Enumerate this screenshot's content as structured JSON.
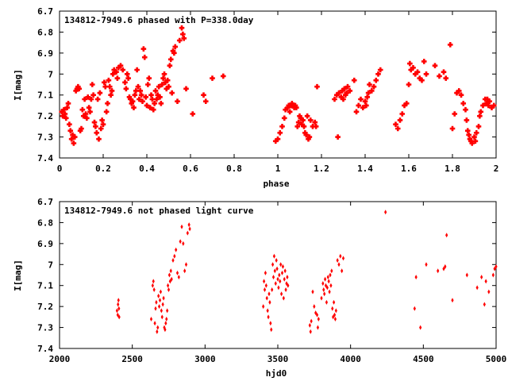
{
  "chart_data": [
    {
      "type": "scatter",
      "title": "134812-7949.6 phased with P=338.0day",
      "xlabel": "phase",
      "ylabel": "I[mag]",
      "xlim": [
        0,
        2
      ],
      "ylim": [
        7.4,
        6.7
      ],
      "y_inverted": true,
      "x_ticks": [
        "0",
        "0.2",
        "0.4",
        "0.6",
        "0.8",
        "1",
        "1.2",
        "1.4",
        "1.6",
        "1.8",
        "2"
      ],
      "y_ticks": [
        "6.7",
        "6.8",
        "6.9",
        "7",
        "7.1",
        "7.2",
        "7.3",
        "7.4"
      ],
      "marker": "cross",
      "color": "#ff0000",
      "points": [
        [
          0.01,
          7.18
        ],
        [
          0.015,
          7.2
        ],
        [
          0.02,
          7.17
        ],
        [
          0.025,
          7.19
        ],
        [
          0.03,
          7.21
        ],
        [
          0.035,
          7.16
        ],
        [
          0.04,
          7.14
        ],
        [
          0.045,
          7.24
        ],
        [
          0.05,
          7.27
        ],
        [
          0.055,
          7.31
        ],
        [
          0.06,
          7.29
        ],
        [
          0.065,
          7.33
        ],
        [
          0.07,
          7.3
        ],
        [
          0.075,
          7.08
        ],
        [
          0.08,
          7.07
        ],
        [
          0.085,
          7.06
        ],
        [
          0.09,
          7.07
        ],
        [
          0.095,
          7.27
        ],
        [
          0.1,
          7.26
        ],
        [
          0.105,
          7.17
        ],
        [
          0.11,
          7.2
        ],
        [
          0.115,
          7.12
        ],
        [
          0.12,
          7.19
        ],
        [
          0.125,
          7.21
        ],
        [
          0.13,
          7.11
        ],
        [
          0.135,
          7.16
        ],
        [
          0.14,
          7.18
        ],
        [
          0.145,
          7.12
        ],
        [
          0.15,
          7.05
        ],
        [
          0.155,
          7.1
        ],
        [
          0.16,
          7.23
        ],
        [
          0.165,
          7.25
        ],
        [
          0.17,
          7.28
        ],
        [
          0.175,
          7.12
        ],
        [
          0.18,
          7.31
        ],
        [
          0.185,
          7.09
        ],
        [
          0.19,
          7.26
        ],
        [
          0.195,
          7.22
        ],
        [
          0.2,
          7.24
        ],
        [
          0.205,
          7.04
        ],
        [
          0.21,
          7.06
        ],
        [
          0.215,
          7.18
        ],
        [
          0.22,
          7.14
        ],
        [
          0.225,
          7.03
        ],
        [
          0.23,
          7.06
        ],
        [
          0.235,
          7.1
        ],
        [
          0.24,
          7.08
        ],
        [
          0.245,
          7.0
        ],
        [
          0.25,
          6.98
        ],
        [
          0.26,
          6.99
        ],
        [
          0.265,
          7.02
        ],
        [
          0.27,
          6.97
        ],
        [
          0.28,
          6.96
        ],
        [
          0.29,
          6.98
        ],
        [
          0.3,
          7.04
        ],
        [
          0.305,
          7.07
        ],
        [
          0.31,
          7.0
        ],
        [
          0.315,
          7.02
        ],
        [
          0.32,
          7.11
        ],
        [
          0.325,
          7.12
        ],
        [
          0.33,
          7.14
        ],
        [
          0.335,
          7.13
        ],
        [
          0.34,
          7.16
        ],
        [
          0.345,
          7.1
        ],
        [
          0.35,
          7.08
        ],
        [
          0.355,
          6.98
        ],
        [
          0.36,
          7.06
        ],
        [
          0.365,
          7.12
        ],
        [
          0.37,
          7.08
        ],
        [
          0.375,
          7.1
        ],
        [
          0.38,
          7.13
        ],
        [
          0.385,
          6.88
        ],
        [
          0.39,
          6.92
        ],
        [
          0.395,
          7.11
        ],
        [
          0.4,
          7.15
        ],
        [
          0.405,
          7.05
        ],
        [
          0.41,
          7.02
        ],
        [
          0.415,
          7.16
        ],
        [
          0.42,
          7.1
        ],
        [
          0.425,
          7.12
        ],
        [
          0.43,
          7.17
        ],
        [
          0.435,
          7.14
        ],
        [
          0.44,
          7.08
        ],
        [
          0.445,
          7.12
        ],
        [
          0.45,
          7.1
        ],
        [
          0.455,
          7.06
        ],
        [
          0.46,
          7.11
        ],
        [
          0.465,
          7.14
        ],
        [
          0.47,
          7.05
        ],
        [
          0.475,
          7.02
        ],
        [
          0.48,
          7.0
        ],
        [
          0.485,
          7.04
        ],
        [
          0.49,
          7.07
        ],
        [
          0.495,
          7.03
        ],
        [
          0.5,
          7.06
        ],
        [
          0.505,
          6.96
        ],
        [
          0.51,
          6.93
        ],
        [
          0.515,
          7.09
        ],
        [
          0.52,
          6.89
        ],
        [
          0.525,
          6.9
        ],
        [
          0.53,
          6.87
        ],
        [
          0.54,
          7.13
        ],
        [
          0.55,
          6.84
        ],
        [
          0.56,
          6.78
        ],
        [
          0.565,
          6.81
        ],
        [
          0.57,
          6.83
        ],
        [
          0.58,
          7.07
        ],
        [
          0.61,
          7.19
        ],
        [
          0.66,
          7.1
        ],
        [
          0.67,
          7.13
        ],
        [
          0.7,
          7.02
        ],
        [
          0.75,
          7.01
        ],
        [
          0.99,
          7.32
        ],
        [
          1.0,
          7.31
        ],
        [
          1.01,
          7.28
        ],
        [
          1.02,
          7.25
        ],
        [
          1.03,
          7.21
        ],
        [
          1.035,
          7.17
        ],
        [
          1.045,
          7.16
        ],
        [
          1.05,
          7.15
        ],
        [
          1.055,
          7.18
        ],
        [
          1.06,
          7.15
        ],
        [
          1.065,
          7.14
        ],
        [
          1.07,
          7.15
        ],
        [
          1.075,
          7.16
        ],
        [
          1.08,
          7.15
        ],
        [
          1.085,
          7.16
        ],
        [
          1.09,
          7.25
        ],
        [
          1.095,
          7.23
        ],
        [
          1.1,
          7.2
        ],
        [
          1.105,
          7.21
        ],
        [
          1.11,
          7.24
        ],
        [
          1.115,
          7.22
        ],
        [
          1.12,
          7.25
        ],
        [
          1.125,
          7.28
        ],
        [
          1.13,
          7.29
        ],
        [
          1.135,
          7.2
        ],
        [
          1.14,
          7.31
        ],
        [
          1.145,
          7.3
        ],
        [
          1.15,
          7.22
        ],
        [
          1.16,
          7.25
        ],
        [
          1.17,
          7.23
        ],
        [
          1.175,
          7.25
        ],
        [
          1.18,
          7.06
        ],
        [
          1.26,
          7.12
        ],
        [
          1.27,
          7.1
        ],
        [
          1.275,
          7.3
        ],
        [
          1.28,
          7.09
        ],
        [
          1.29,
          7.11
        ],
        [
          1.295,
          7.08
        ],
        [
          1.3,
          7.12
        ],
        [
          1.305,
          7.07
        ],
        [
          1.31,
          7.1
        ],
        [
          1.315,
          7.09
        ],
        [
          1.32,
          7.06
        ],
        [
          1.33,
          7.08
        ],
        [
          1.35,
          7.03
        ],
        [
          1.36,
          7.18
        ],
        [
          1.37,
          7.15
        ],
        [
          1.38,
          7.12
        ],
        [
          1.39,
          7.16
        ],
        [
          1.4,
          7.13
        ],
        [
          1.405,
          7.15
        ],
        [
          1.41,
          7.11
        ],
        [
          1.415,
          7.09
        ],
        [
          1.42,
          7.05
        ],
        [
          1.43,
          7.08
        ],
        [
          1.44,
          7.06
        ],
        [
          1.45,
          7.03
        ],
        [
          1.46,
          7.0
        ],
        [
          1.47,
          6.98
        ],
        [
          1.54,
          7.24
        ],
        [
          1.55,
          7.26
        ],
        [
          1.56,
          7.22
        ],
        [
          1.57,
          7.19
        ],
        [
          1.58,
          7.15
        ],
        [
          1.59,
          7.14
        ],
        [
          1.6,
          7.05
        ],
        [
          1.605,
          6.95
        ],
        [
          1.61,
          6.98
        ],
        [
          1.62,
          6.97
        ],
        [
          1.63,
          7.0
        ],
        [
          1.64,
          6.99
        ],
        [
          1.65,
          7.02
        ],
        [
          1.66,
          7.03
        ],
        [
          1.67,
          6.94
        ],
        [
          1.68,
          7.0
        ],
        [
          1.72,
          6.96
        ],
        [
          1.74,
          7.01
        ],
        [
          1.76,
          6.99
        ],
        [
          1.77,
          7.02
        ],
        [
          1.79,
          6.86
        ],
        [
          1.8,
          7.26
        ],
        [
          1.81,
          7.19
        ],
        [
          1.82,
          7.09
        ],
        [
          1.83,
          7.08
        ],
        [
          1.84,
          7.1
        ],
        [
          1.85,
          7.14
        ],
        [
          1.86,
          7.17
        ],
        [
          1.865,
          7.22
        ],
        [
          1.87,
          7.27
        ],
        [
          1.875,
          7.29
        ],
        [
          1.88,
          7.31
        ],
        [
          1.885,
          7.32
        ],
        [
          1.89,
          7.33
        ],
        [
          1.9,
          7.3
        ],
        [
          1.905,
          7.32
        ],
        [
          1.91,
          7.28
        ],
        [
          1.92,
          7.25
        ],
        [
          1.925,
          7.2
        ],
        [
          1.93,
          7.18
        ],
        [
          1.94,
          7.15
        ],
        [
          1.95,
          7.12
        ],
        [
          1.955,
          7.14
        ],
        [
          1.96,
          7.12
        ],
        [
          1.965,
          7.15
        ],
        [
          1.97,
          7.13
        ],
        [
          1.98,
          7.16
        ],
        [
          1.99,
          7.15
        ]
      ]
    },
    {
      "type": "scatter",
      "title": "134812-7949.6 not phased light curve",
      "xlabel": "hjd0",
      "ylabel": "I[mag]",
      "xlim": [
        2000,
        5000
      ],
      "ylim": [
        7.4,
        6.7
      ],
      "y_inverted": true,
      "x_ticks": [
        "2000",
        "2500",
        "3000",
        "3500",
        "4000",
        "4500",
        "5000"
      ],
      "y_ticks": [
        "6.7",
        "6.8",
        "6.9",
        "7",
        "7.1",
        "7.2",
        "7.3",
        "7.4"
      ],
      "marker": "diamond",
      "color": "#ff0000",
      "points": [
        [
          2395,
          7.22
        ],
        [
          2400,
          7.24
        ],
        [
          2402,
          7.19
        ],
        [
          2405,
          7.17
        ],
        [
          2408,
          7.21
        ],
        [
          2410,
          7.25
        ],
        [
          2630,
          7.26
        ],
        [
          2640,
          7.1
        ],
        [
          2645,
          7.08
        ],
        [
          2650,
          7.12
        ],
        [
          2655,
          7.28
        ],
        [
          2660,
          7.21
        ],
        [
          2665,
          7.18
        ],
        [
          2670,
          7.32
        ],
        [
          2675,
          7.3
        ],
        [
          2680,
          7.15
        ],
        [
          2685,
          7.2
        ],
        [
          2690,
          7.17
        ],
        [
          2695,
          7.13
        ],
        [
          2700,
          7.22
        ],
        [
          2705,
          7.25
        ],
        [
          2710,
          7.19
        ],
        [
          2715,
          7.16
        ],
        [
          2720,
          7.3
        ],
        [
          2725,
          7.31
        ],
        [
          2730,
          7.28
        ],
        [
          2735,
          7.26
        ],
        [
          2740,
          7.22
        ],
        [
          2745,
          7.1
        ],
        [
          2750,
          7.12
        ],
        [
          2755,
          7.05
        ],
        [
          2760,
          7.08
        ],
        [
          2765,
          7.03
        ],
        [
          2770,
          7.07
        ],
        [
          2780,
          6.98
        ],
        [
          2790,
          6.96
        ],
        [
          2800,
          6.93
        ],
        [
          2810,
          7.04
        ],
        [
          2820,
          7.06
        ],
        [
          2830,
          6.89
        ],
        [
          2840,
          6.82
        ],
        [
          2850,
          6.9
        ],
        [
          2860,
          7.03
        ],
        [
          2870,
          7.0
        ],
        [
          2880,
          6.85
        ],
        [
          2890,
          6.81
        ],
        [
          2895,
          6.83
        ],
        [
          3400,
          7.2
        ],
        [
          3405,
          7.08
        ],
        [
          3410,
          7.12
        ],
        [
          3415,
          7.04
        ],
        [
          3420,
          7.1
        ],
        [
          3425,
          7.16
        ],
        [
          3430,
          7.22
        ],
        [
          3435,
          7.25
        ],
        [
          3440,
          7.14
        ],
        [
          3445,
          7.18
        ],
        [
          3450,
          7.28
        ],
        [
          3455,
          7.31
        ],
        [
          3460,
          7.12
        ],
        [
          3465,
          7.0
        ],
        [
          3470,
          7.06
        ],
        [
          3475,
          6.96
        ],
        [
          3480,
          7.03
        ],
        [
          3485,
          7.09
        ],
        [
          3490,
          6.98
        ],
        [
          3495,
          7.02
        ],
        [
          3500,
          7.07
        ],
        [
          3505,
          7.11
        ],
        [
          3510,
          7.05
        ],
        [
          3515,
          7.08
        ],
        [
          3520,
          7.0
        ],
        [
          3525,
          7.14
        ],
        [
          3530,
          7.04
        ],
        [
          3535,
          7.01
        ],
        [
          3540,
          7.16
        ],
        [
          3545,
          7.07
        ],
        [
          3550,
          7.03
        ],
        [
          3555,
          7.12
        ],
        [
          3560,
          7.09
        ],
        [
          3565,
          7.06
        ],
        [
          3570,
          7.1
        ],
        [
          3720,
          7.29
        ],
        [
          3725,
          7.32
        ],
        [
          3730,
          7.27
        ],
        [
          3740,
          7.13
        ],
        [
          3750,
          7.2
        ],
        [
          3760,
          7.23
        ],
        [
          3770,
          7.24
        ],
        [
          3775,
          7.3
        ],
        [
          3780,
          7.26
        ],
        [
          3800,
          7.16
        ],
        [
          3810,
          7.09
        ],
        [
          3815,
          7.12
        ],
        [
          3820,
          7.14
        ],
        [
          3825,
          7.07
        ],
        [
          3830,
          7.1
        ],
        [
          3835,
          7.18
        ],
        [
          3840,
          7.11
        ],
        [
          3845,
          7.06
        ],
        [
          3850,
          7.08
        ],
        [
          3855,
          7.13
        ],
        [
          3860,
          7.05
        ],
        [
          3865,
          7.1
        ],
        [
          3870,
          7.03
        ],
        [
          3875,
          7.21
        ],
        [
          3880,
          7.25
        ],
        [
          3885,
          7.18
        ],
        [
          3890,
          7.24
        ],
        [
          3895,
          7.26
        ],
        [
          3900,
          7.22
        ],
        [
          3910,
          6.98
        ],
        [
          3920,
          7.0
        ],
        [
          3930,
          6.96
        ],
        [
          3940,
          7.03
        ],
        [
          3950,
          6.97
        ],
        [
          4240,
          6.75
        ],
        [
          4440,
          7.21
        ],
        [
          4450,
          7.06
        ],
        [
          4480,
          7.3
        ],
        [
          4520,
          7.0
        ],
        [
          4600,
          7.03
        ],
        [
          4640,
          7.02
        ],
        [
          4650,
          7.01
        ],
        [
          4660,
          6.86
        ],
        [
          4700,
          7.17
        ],
        [
          4800,
          7.05
        ],
        [
          4870,
          7.11
        ],
        [
          4900,
          7.06
        ],
        [
          4920,
          7.19
        ],
        [
          4930,
          7.08
        ],
        [
          4950,
          7.13
        ],
        [
          4980,
          7.05
        ],
        [
          4990,
          7.02
        ],
        [
          5000,
          7.01
        ]
      ]
    }
  ]
}
